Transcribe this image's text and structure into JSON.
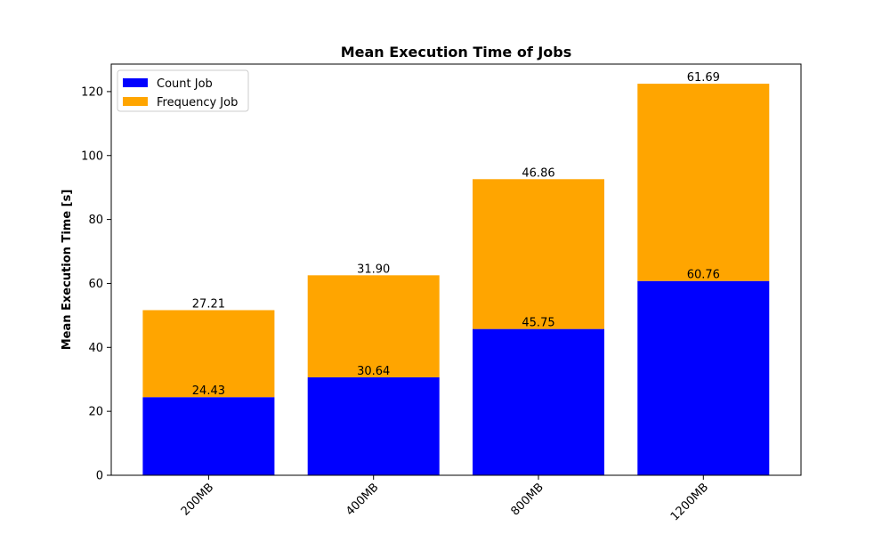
{
  "chart_data": {
    "type": "bar",
    "stacked": true,
    "title": "Mean Execution Time of Jobs",
    "xlabel": "",
    "ylabel": "Mean Execution Time [s]",
    "categories": [
      "200MB",
      "400MB",
      "800MB",
      "1200MB"
    ],
    "series": [
      {
        "name": "Count Job",
        "color": "#0000ff",
        "values": [
          24.43,
          30.64,
          45.75,
          60.76
        ],
        "labels": [
          "24.43",
          "30.64",
          "45.75",
          "60.76"
        ]
      },
      {
        "name": "Frequency Job",
        "color": "#ffa500",
        "values": [
          27.21,
          31.9,
          46.86,
          61.69
        ],
        "labels": [
          "27.21",
          "31.90",
          "46.86",
          "61.69"
        ]
      }
    ],
    "ylim": [
      0,
      128.6
    ],
    "yticks": [
      0,
      20,
      40,
      60,
      80,
      100,
      120
    ],
    "ytick_labels": [
      "0",
      "20",
      "40",
      "60",
      "80",
      "100",
      "120"
    ],
    "xtick_rotation": "45 degrees",
    "legend_position": "upper-left",
    "grid": false
  }
}
